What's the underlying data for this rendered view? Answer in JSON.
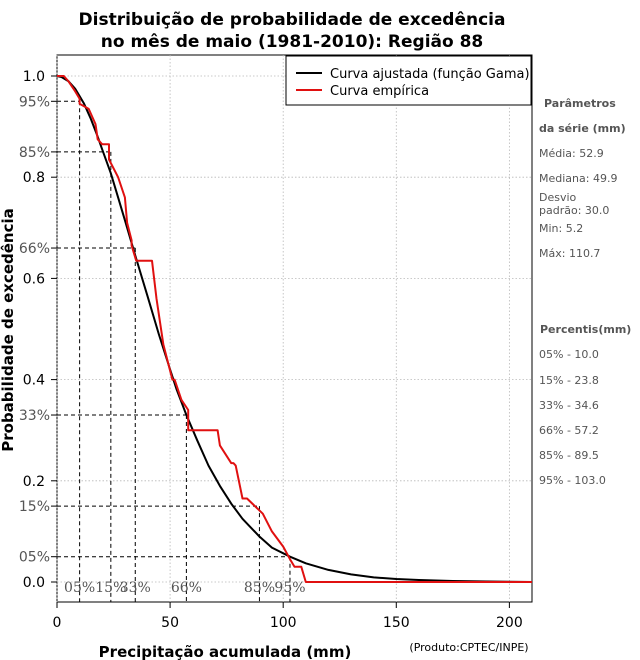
{
  "chart_data": {
    "type": "line",
    "title": [
      "Distribuição de probabilidade de excedência",
      "no mês de maio (1981-2010): Região 88"
    ],
    "xlabel": "Precipitação acumulada (mm)",
    "ylabel": "Probabilidade de excedência",
    "credit": "(Produto:CPTEC/INPE)",
    "xlim": [
      0,
      210
    ],
    "ylim": [
      -0.04,
      1.02
    ],
    "x_ticks": [
      0,
      50,
      100,
      150,
      200
    ],
    "y_ticks": [
      {
        "value": 1.0,
        "label": "1.0"
      },
      {
        "value": 0.8,
        "label": "0.8"
      },
      {
        "value": 0.6,
        "label": "0.6"
      },
      {
        "value": 0.4,
        "label": "0.4"
      },
      {
        "value": 0.2,
        "label": "0.2"
      },
      {
        "value": 0.0,
        "label": "0.0"
      }
    ],
    "percentile_marks": [
      {
        "prob": 0.95,
        "x": 10.0,
        "y_label": "95%",
        "x_label": "05%"
      },
      {
        "prob": 0.85,
        "x": 23.8,
        "y_label": "85%",
        "x_label": "15%"
      },
      {
        "prob": 0.66,
        "x": 34.6,
        "y_label": "66%",
        "x_label": "33%"
      },
      {
        "prob": 0.33,
        "x": 57.2,
        "y_label": "33%",
        "x_label": "66%"
      },
      {
        "prob": 0.15,
        "x": 89.5,
        "y_label": "15%",
        "x_label": "85%"
      },
      {
        "prob": 0.05,
        "x": 103.0,
        "y_label": "05%",
        "x_label": "95%"
      }
    ],
    "legend": {
      "position": "top-right",
      "entries": [
        {
          "label": "Curva ajustada (função Gama)",
          "color": "#000000"
        },
        {
          "label": "Curva empírica",
          "color": "#e01010"
        }
      ]
    },
    "series": [
      {
        "name": "Curva ajustada (função Gama)",
        "color": "#000000",
        "x": [
          0,
          2,
          5,
          8,
          10,
          12,
          15,
          18,
          20,
          23.8,
          27,
          30,
          34.6,
          40,
          45,
          50,
          52.9,
          57.2,
          62,
          67,
          72,
          77,
          82,
          89.5,
          95,
          103,
          110,
          120,
          130,
          140,
          150,
          160,
          175,
          190,
          210
        ],
        "values": [
          1.0,
          0.998,
          0.99,
          0.975,
          0.96,
          0.945,
          0.915,
          0.88,
          0.855,
          0.808,
          0.76,
          0.715,
          0.645,
          0.565,
          0.49,
          0.42,
          0.38,
          0.33,
          0.28,
          0.23,
          0.19,
          0.155,
          0.125,
          0.09,
          0.068,
          0.05,
          0.037,
          0.024,
          0.015,
          0.009,
          0.006,
          0.004,
          0.002,
          0.001,
          0.0
        ]
      },
      {
        "name": "Curva empírica",
        "color": "#e01010",
        "x": [
          0,
          3,
          5,
          8,
          10,
          10,
          14,
          14,
          17,
          18,
          20,
          23,
          23,
          27,
          30,
          31,
          33,
          33,
          35,
          36,
          37,
          42,
          44,
          47,
          51,
          52,
          55,
          58,
          58,
          62,
          64,
          71,
          72,
          77,
          78,
          79,
          82,
          84,
          91,
          95,
          100,
          103,
          105,
          108,
          110,
          210
        ],
        "values": [
          1.0,
          1.0,
          0.99,
          0.97,
          0.955,
          0.945,
          0.935,
          0.935,
          0.905,
          0.875,
          0.865,
          0.865,
          0.835,
          0.8,
          0.76,
          0.71,
          0.675,
          0.665,
          0.635,
          0.635,
          0.635,
          0.635,
          0.56,
          0.47,
          0.4,
          0.4,
          0.36,
          0.34,
          0.3,
          0.3,
          0.3,
          0.3,
          0.27,
          0.235,
          0.235,
          0.23,
          0.165,
          0.165,
          0.135,
          0.1,
          0.07,
          0.045,
          0.03,
          0.03,
          0.0,
          0.0
        ]
      }
    ]
  },
  "stats_panel": {
    "heading_1": "Parâmetros",
    "heading_2": "da série (mm)",
    "mean": "Média: 52.9",
    "median": "Mediana: 49.9",
    "std_1": "Desvio",
    "std_2": "padrão: 30.0",
    "min": "Min: 5.2",
    "max": "Máx: 110.7",
    "percentile_heading": "Percentis(mm)",
    "percentiles": [
      "05% - 10.0",
      "15% - 23.8",
      "33% - 34.6",
      "66% - 57.2",
      "85% - 89.5",
      "95% - 103.0"
    ]
  }
}
